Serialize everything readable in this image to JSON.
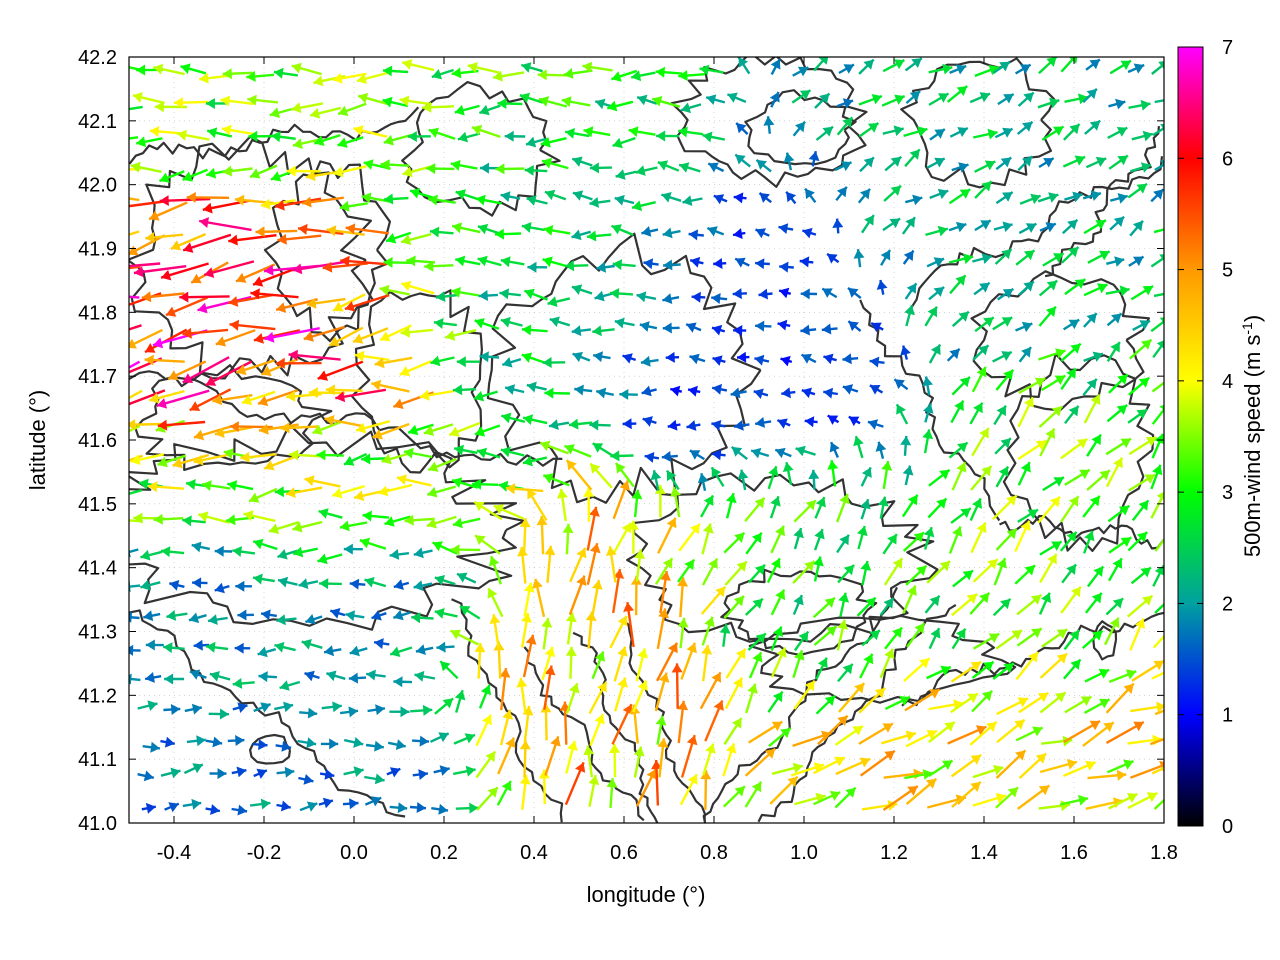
{
  "chart_data": {
    "type": "quiver",
    "title": "",
    "xlabel": "longitude (°)",
    "ylabel": "latitude (°)",
    "colorbar_label": "500m-wind speed (m s-1)",
    "colorbar_label_parts": {
      "base": "500m-wind speed (m s",
      "sup": "-1",
      "end": ")"
    },
    "xlim": [
      -0.5,
      1.8
    ],
    "ylim": [
      41.0,
      42.2
    ],
    "xticks": [
      -0.4,
      -0.2,
      0.0,
      0.2,
      0.4,
      0.6,
      0.8,
      1.0,
      1.2,
      1.4,
      1.6,
      1.8
    ],
    "xtick_labels": [
      "-0.4",
      "-0.2",
      "0.0",
      "0.2",
      "0.4",
      "0.6",
      "0.8",
      "1.0",
      "1.2",
      "1.4",
      "1.6",
      "1.8"
    ],
    "yticks": [
      41.0,
      41.1,
      41.2,
      41.3,
      41.4,
      41.5,
      41.6,
      41.7,
      41.8,
      41.9,
      42.0,
      42.1,
      42.2
    ],
    "ytick_labels": [
      "41.0",
      "41.1",
      "41.2",
      "41.3",
      "41.4",
      "41.5",
      "41.6",
      "41.7",
      "41.8",
      "41.9",
      "42.0",
      "42.1",
      "42.2"
    ],
    "colorbar": {
      "range": [
        0,
        7
      ],
      "ticks": [
        0,
        1,
        2,
        3,
        4,
        5,
        6,
        7
      ],
      "tick_labels": [
        "0",
        "1",
        "2",
        "3",
        "4",
        "5",
        "6",
        "7"
      ],
      "palette": [
        "#000000",
        "#0000ff",
        "#00a0a0",
        "#00ff00",
        "#ffff00",
        "#ff9900",
        "#ff0000",
        "#ff00ff"
      ]
    },
    "grid": true,
    "contour_color": "#333333",
    "wind_regions": [
      {
        "lon": [
          -0.5,
          0.15
        ],
        "lat": [
          41.62,
          42.0
        ],
        "speed": 5.6,
        "dir_deg": 190
      },
      {
        "lon": [
          -0.5,
          0.35
        ],
        "lat": [
          41.45,
          41.62
        ],
        "speed": 3.5,
        "dir_deg": 185
      },
      {
        "lon": [
          -0.5,
          0.6
        ],
        "lat": [
          42.0,
          42.2
        ],
        "speed": 3.3,
        "dir_deg": 182
      },
      {
        "lon": [
          0.1,
          0.7
        ],
        "lat": [
          41.7,
          42.2
        ],
        "speed": 2.6,
        "dir_deg": 178
      },
      {
        "lon": [
          0.6,
          1.25
        ],
        "lat": [
          41.55,
          42.0
        ],
        "speed": 1.3,
        "dir_deg": 175
      },
      {
        "lon": [
          1.0,
          1.8
        ],
        "lat": [
          41.7,
          42.2
        ],
        "speed": 2.3,
        "dir_deg": 30
      },
      {
        "lon": [
          -0.5,
          0.3
        ],
        "lat": [
          41.2,
          41.45
        ],
        "speed": 2.0,
        "dir_deg": 180
      },
      {
        "lon": [
          -0.5,
          0.2
        ],
        "lat": [
          41.0,
          41.2
        ],
        "speed": 1.8,
        "dir_deg": 5
      },
      {
        "lon": [
          0.3,
          0.75
        ],
        "lat": [
          41.0,
          41.45
        ],
        "speed": 4.5,
        "dir_deg": 80
      },
      {
        "lon": [
          0.75,
          1.3
        ],
        "lat": [
          41.2,
          41.55
        ],
        "speed": 3.0,
        "dir_deg": 60
      },
      {
        "lon": [
          1.3,
          1.8
        ],
        "lat": [
          41.25,
          41.7
        ],
        "speed": 3.2,
        "dir_deg": 50
      },
      {
        "lon": [
          1.0,
          1.8
        ],
        "lat": [
          41.0,
          41.2
        ],
        "speed": 4.2,
        "dir_deg": 25
      }
    ]
  }
}
